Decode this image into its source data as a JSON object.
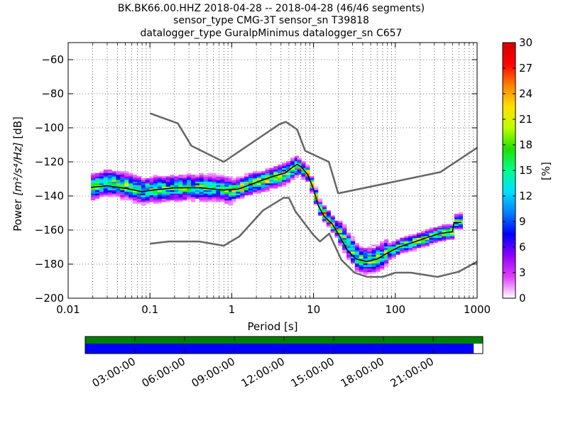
{
  "chart_data": {
    "type": "heatmap",
    "title_lines": [
      "BK.BK66.00.HHZ   2018-04-28 -- 2018-04-28  (46/46 segments)",
      "sensor_type CMG-3T sensor_sn T39818",
      "datalogger_type GuralpMinimus datalogger_sn C657"
    ],
    "xlabel": "Period [s]",
    "ylabel_prefix": "Power ",
    "ylabel_units": "[m²/s⁴/Hz]",
    "ylabel_suffix": " [dB]",
    "x_scale": "log",
    "xlim": [
      0.01,
      1000
    ],
    "ylim": [
      -200,
      -50
    ],
    "x_ticks": [
      {
        "value": 0.01,
        "label": "0.01"
      },
      {
        "value": 0.1,
        "label": "0.1"
      },
      {
        "value": 1,
        "label": "1"
      },
      {
        "value": 10,
        "label": "10"
      },
      {
        "value": 100,
        "label": "100"
      },
      {
        "value": 1000,
        "label": "1000"
      }
    ],
    "y_ticks": [
      {
        "value": -60,
        "label": "−60"
      },
      {
        "value": -80,
        "label": "−80"
      },
      {
        "value": -100,
        "label": "−100"
      },
      {
        "value": -120,
        "label": "−120"
      },
      {
        "value": -140,
        "label": "−140"
      },
      {
        "value": -160,
        "label": "−160"
      },
      {
        "value": -180,
        "label": "−180"
      },
      {
        "value": -200,
        "label": "−200"
      }
    ],
    "grid": "dotted",
    "colorbar": {
      "label": "[%]",
      "min": 0,
      "max": 30,
      "ticks": [
        {
          "value": 0,
          "label": "0"
        },
        {
          "value": 3,
          "label": "3"
        },
        {
          "value": 6,
          "label": "6"
        },
        {
          "value": 9,
          "label": "9"
        },
        {
          "value": 12,
          "label": "12"
        },
        {
          "value": 15,
          "label": "15"
        },
        {
          "value": 18,
          "label": "18"
        },
        {
          "value": 21,
          "label": "21"
        },
        {
          "value": 24,
          "label": "24"
        },
        {
          "value": 27,
          "label": "27"
        },
        {
          "value": 30,
          "label": "30"
        }
      ],
      "colormap": [
        "#ffffff",
        "#e040ff",
        "#9000ff",
        "#0000ff",
        "#0080ff",
        "#00e0ff",
        "#00ff90",
        "#20e000",
        "#c0ff00",
        "#ffe000",
        "#ff8000",
        "#ff0000",
        "#d00000"
      ]
    },
    "noise_models": {
      "color": "#666666",
      "high": [
        [
          0.1,
          -91.5
        ],
        [
          0.22,
          -97.4
        ],
        [
          0.32,
          -110.5
        ],
        [
          0.8,
          -120
        ],
        [
          3.8,
          -98
        ],
        [
          4.6,
          -96.5
        ],
        [
          6.3,
          -101
        ],
        [
          7.9,
          -113.5
        ],
        [
          15.4,
          -120
        ],
        [
          20,
          -138.5
        ],
        [
          354.8,
          -126
        ],
        [
          10000,
          -80
        ]
      ],
      "low": [
        [
          0.1,
          -168
        ],
        [
          0.17,
          -166.7
        ],
        [
          0.4,
          -166.7
        ],
        [
          0.8,
          -169.2
        ],
        [
          1.24,
          -163.7
        ],
        [
          2.4,
          -148.6
        ],
        [
          4.3,
          -141.1
        ],
        [
          5,
          -141.1
        ],
        [
          6,
          -149
        ],
        [
          10,
          -163
        ],
        [
          12,
          -166.7
        ],
        [
          15.6,
          -162.1
        ],
        [
          21.9,
          -177.5
        ],
        [
          31.6,
          -185
        ],
        [
          45,
          -187.5
        ],
        [
          70,
          -187.5
        ],
        [
          101,
          -185
        ],
        [
          154,
          -185
        ],
        [
          328,
          -187.5
        ],
        [
          600,
          -184.4
        ],
        [
          10000,
          -151.9
        ]
      ]
    },
    "heatmap": {
      "description_source": "visible PSD probability density",
      "bin_period_ratio": 1.125,
      "bin_db": 1,
      "segments": [
        {
          "p_from": 0.019,
          "p_to": 0.11,
          "center_db": [
            [
              0.019,
              -135
            ],
            [
              0.03,
              -132
            ],
            [
              0.05,
              -134
            ],
            [
              0.08,
              -137
            ],
            [
              0.11,
              -136
            ]
          ],
          "spread_db": 5,
          "peak_pct": 16
        },
        {
          "p_from": 0.11,
          "p_to": 1.0,
          "center_db": [
            [
              0.11,
              -136
            ],
            [
              0.3,
              -135
            ],
            [
              0.6,
              -135
            ],
            [
              1.0,
              -137
            ]
          ],
          "spread_db": 5,
          "peak_pct": 15
        },
        {
          "p_from": 1.0,
          "p_to": 6.3,
          "center_db": [
            [
              1.0,
              -137
            ],
            [
              1.7,
              -133
            ],
            [
              3.0,
              -130
            ],
            [
              4.5,
              -127
            ],
            [
              6.3,
              -122
            ]
          ],
          "spread_db": 4,
          "peak_pct": 19
        },
        {
          "p_from": 6.3,
          "p_to": 20,
          "center_db": [
            [
              6.3,
              -122
            ],
            [
              8.5,
              -127
            ],
            [
              10,
              -136
            ],
            [
              12,
              -147
            ],
            [
              15,
              -153
            ],
            [
              20,
              -160
            ]
          ],
          "spread_db": 3,
          "peak_pct": 21
        },
        {
          "p_from": 20,
          "p_to": 80,
          "center_db": [
            [
              20,
              -160
            ],
            [
              28,
              -170
            ],
            [
              35,
              -177
            ],
            [
              50,
              -178
            ],
            [
              70,
              -175
            ],
            [
              80,
              -173
            ]
          ],
          "spread_db": 5,
          "peak_pct": 16
        },
        {
          "p_from": 80,
          "p_to": 640,
          "center_db": [
            [
              80,
              -173
            ],
            [
              120,
              -169
            ],
            [
              200,
              -166
            ],
            [
              350,
              -162
            ],
            [
              500,
              -161
            ],
            [
              520,
              -155
            ],
            [
              640,
              -155
            ]
          ],
          "spread_db": 3,
          "peak_pct": 17
        }
      ]
    },
    "mode_line": {
      "color": "#000000",
      "points": [
        [
          0.019,
          -135
        ],
        [
          0.03,
          -134
        ],
        [
          0.05,
          -135.5
        ],
        [
          0.08,
          -137.5
        ],
        [
          0.11,
          -136.5
        ],
        [
          0.2,
          -135.2
        ],
        [
          0.4,
          -135.2
        ],
        [
          0.8,
          -136.5
        ],
        [
          1.2,
          -136
        ],
        [
          2,
          -132
        ],
        [
          3.2,
          -128.5
        ],
        [
          4.5,
          -126.5
        ],
        [
          5.6,
          -123
        ],
        [
          6.3,
          -121.5
        ],
        [
          7.1,
          -123
        ],
        [
          8.5,
          -127.5
        ],
        [
          10,
          -136
        ],
        [
          11.5,
          -146
        ],
        [
          13.5,
          -152
        ],
        [
          17,
          -156.5
        ],
        [
          21,
          -164
        ],
        [
          26,
          -172
        ],
        [
          33,
          -177
        ],
        [
          45,
          -178.5
        ],
        [
          60,
          -177
        ],
        [
          80,
          -173.5
        ],
        [
          110,
          -170
        ],
        [
          170,
          -167
        ],
        [
          260,
          -164
        ],
        [
          350,
          -162
        ],
        [
          500,
          -161
        ],
        [
          520,
          -155.5
        ],
        [
          640,
          -155.5
        ]
      ]
    },
    "time_axis": {
      "labels": [
        "03:00:00",
        "06:00:00",
        "09:00:00",
        "12:00:00",
        "15:00:00",
        "18:00:00",
        "21:00:00"
      ],
      "label_hours": [
        3,
        6,
        9,
        12,
        15,
        18,
        21
      ],
      "range_hours": [
        0,
        24
      ],
      "green_bar": {
        "color": "#008000",
        "from_hours": 0,
        "to_hours": 24
      },
      "blue_bar": {
        "color": "#0000ff",
        "from_hours": 0,
        "to_hours": 23.45
      }
    }
  }
}
